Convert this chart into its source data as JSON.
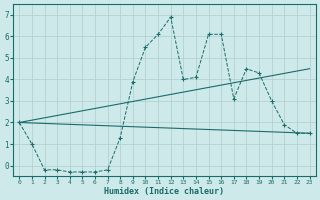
{
  "xlabel": "Humidex (Indice chaleur)",
  "background_color": "#cde9e9",
  "grid_color": "#b0cccc",
  "line_color": "#1a6b6b",
  "xlim": [
    -0.5,
    23.5
  ],
  "ylim": [
    -0.5,
    7.5
  ],
  "xticks": [
    0,
    1,
    2,
    3,
    4,
    5,
    6,
    7,
    8,
    9,
    10,
    11,
    12,
    13,
    14,
    15,
    16,
    17,
    18,
    19,
    20,
    21,
    22,
    23
  ],
  "yticks": [
    0,
    1,
    2,
    3,
    4,
    5,
    6,
    7
  ],
  "jagged": {
    "x": [
      0,
      1,
      2,
      3,
      4,
      5,
      6,
      7,
      8,
      9,
      10,
      11,
      12,
      13,
      14,
      15,
      16,
      17,
      18,
      19,
      20,
      21,
      22,
      23
    ],
    "y": [
      2.0,
      1.0,
      -0.2,
      -0.2,
      -0.3,
      -0.3,
      -0.3,
      -0.2,
      1.3,
      3.9,
      5.5,
      6.1,
      6.9,
      4.0,
      4.1,
      6.1,
      6.1,
      3.1,
      4.5,
      4.3,
      3.0,
      1.9,
      1.5,
      1.5
    ]
  },
  "line1": {
    "x": [
      0,
      23
    ],
    "y": [
      2.0,
      1.5
    ]
  },
  "line2": {
    "x": [
      0,
      23
    ],
    "y": [
      2.0,
      4.5
    ]
  }
}
